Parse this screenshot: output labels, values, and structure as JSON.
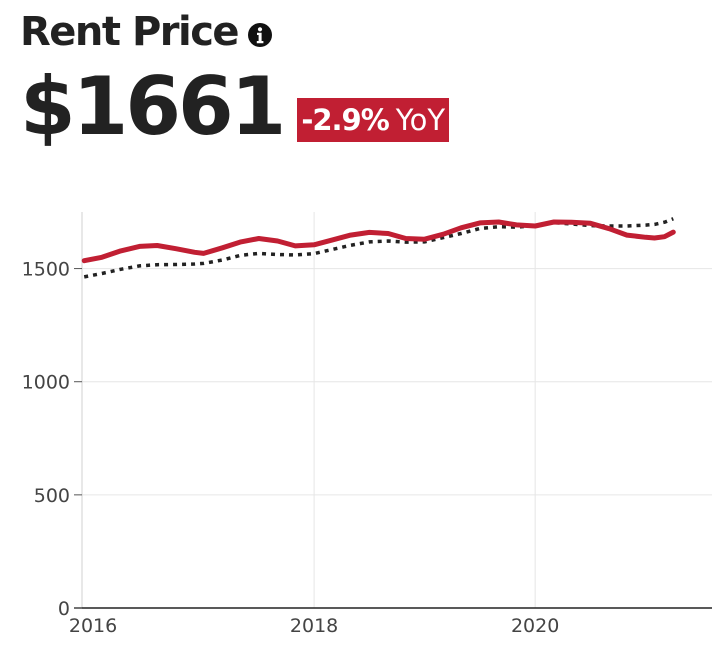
{
  "header": {
    "title": "Rent Price",
    "info_icon": "info-circle-icon",
    "value": "$1661",
    "change": "-2.9%",
    "change_unit": "YoY"
  },
  "colors": {
    "primary_series": "#c11f33",
    "secondary_series": "#222222",
    "badge_background": "#c11f33",
    "grid": "#e6e6e6"
  },
  "chart_data": {
    "type": "line",
    "title": "",
    "xlabel": "",
    "ylabel": "",
    "xlim": [
      2015.9,
      2021.6
    ],
    "ylim": [
      0,
      1750
    ],
    "x_ticks": [
      {
        "value": 2016,
        "label": "2016"
      },
      {
        "value": 2018,
        "label": "2018"
      },
      {
        "value": 2020,
        "label": "2020"
      }
    ],
    "y_ticks": [
      {
        "value": 0,
        "label": "0"
      },
      {
        "value": 500,
        "label": "500"
      },
      {
        "value": 1000,
        "label": "1000"
      },
      {
        "value": 1500,
        "label": "1500"
      }
    ],
    "grid": true,
    "legend": "none",
    "series": [
      {
        "style": "solid",
        "color": "#c11f33",
        "x": [
          2015.92,
          2016.08,
          2016.25,
          2016.42,
          2016.58,
          2016.75,
          2016.92,
          2017.0,
          2017.17,
          2017.33,
          2017.5,
          2017.67,
          2017.83,
          2018.0,
          2018.17,
          2018.33,
          2018.5,
          2018.67,
          2018.83,
          2019.0,
          2019.17,
          2019.33,
          2019.5,
          2019.67,
          2019.83,
          2020.0,
          2020.17,
          2020.33,
          2020.5,
          2020.67,
          2020.83,
          2021.0,
          2021.08,
          2021.17,
          2021.25
        ],
        "values": [
          1535,
          1550,
          1578,
          1598,
          1602,
          1588,
          1572,
          1567,
          1592,
          1617,
          1633,
          1622,
          1600,
          1605,
          1627,
          1648,
          1660,
          1655,
          1633,
          1630,
          1652,
          1680,
          1702,
          1706,
          1693,
          1688,
          1706,
          1705,
          1700,
          1676,
          1648,
          1638,
          1635,
          1641,
          1661
        ]
      },
      {
        "style": "dotted",
        "color": "#222222",
        "x": [
          2015.92,
          2016.08,
          2016.25,
          2016.42,
          2016.58,
          2016.75,
          2016.92,
          2017.0,
          2017.17,
          2017.33,
          2017.5,
          2017.67,
          2017.83,
          2018.0,
          2018.17,
          2018.33,
          2018.5,
          2018.67,
          2018.83,
          2019.0,
          2019.17,
          2019.33,
          2019.5,
          2019.67,
          2019.83,
          2020.0,
          2020.17,
          2020.33,
          2020.5,
          2020.67,
          2020.83,
          2021.0,
          2021.08,
          2021.17,
          2021.25
        ],
        "values": [
          1463,
          1478,
          1497,
          1512,
          1517,
          1518,
          1520,
          1523,
          1538,
          1558,
          1567,
          1562,
          1560,
          1566,
          1585,
          1603,
          1618,
          1622,
          1617,
          1618,
          1637,
          1655,
          1677,
          1685,
          1683,
          1690,
          1703,
          1697,
          1690,
          1688,
          1688,
          1692,
          1695,
          1705,
          1720
        ]
      }
    ]
  }
}
